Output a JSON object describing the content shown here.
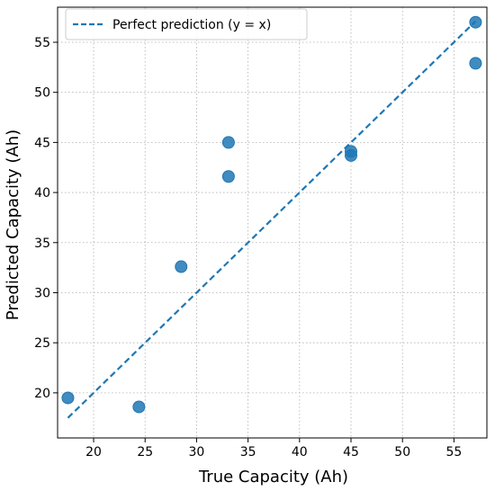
{
  "chart_data": {
    "type": "scatter",
    "xlabel": "True Capacity (Ah)",
    "ylabel": "Predicted Capacity (Ah)",
    "xlim": [
      16.5,
      58.2
    ],
    "ylim": [
      15.5,
      58.5
    ],
    "xticks": [
      "20",
      "25",
      "30",
      "35",
      "40",
      "45",
      "50",
      "55"
    ],
    "yticks": [
      "20",
      "25",
      "30",
      "35",
      "40",
      "45",
      "50",
      "55"
    ],
    "grid": true,
    "grid_style": "dotted",
    "legend_position": "top-left",
    "legend": [
      {
        "label": "Perfect prediction (y = x)",
        "style": "dashed-line",
        "color": "#1f77b4"
      }
    ],
    "reference_line": {
      "x": [
        17.5,
        57.1
      ],
      "y": [
        17.5,
        57.1
      ]
    },
    "series": [
      {
        "marker": "circle",
        "color": "#1f77b4",
        "points": [
          {
            "x": 17.5,
            "y": 19.5
          },
          {
            "x": 24.4,
            "y": 18.6
          },
          {
            "x": 28.5,
            "y": 32.6
          },
          {
            "x": 33.1,
            "y": 45.0
          },
          {
            "x": 33.1,
            "y": 41.6
          },
          {
            "x": 45.0,
            "y": 44.1
          },
          {
            "x": 45.0,
            "y": 43.7
          },
          {
            "x": 57.1,
            "y": 57.0
          },
          {
            "x": 57.1,
            "y": 52.9
          }
        ]
      }
    ]
  }
}
